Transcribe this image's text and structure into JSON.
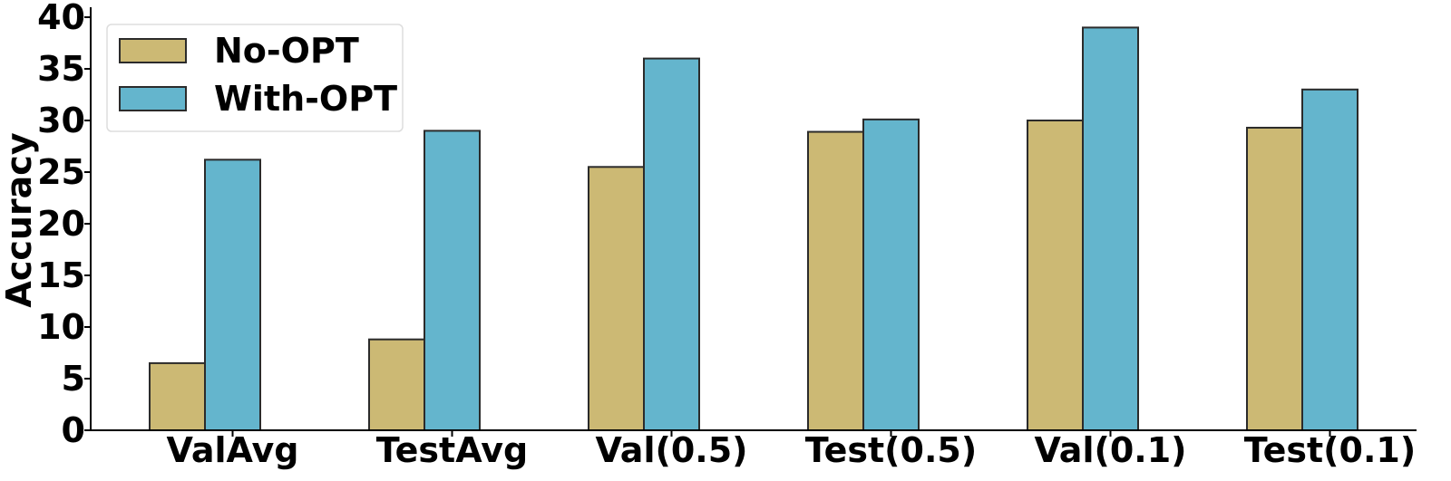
{
  "chart_data": {
    "type": "bar",
    "title": "",
    "xlabel": "",
    "ylabel": "Accuracy",
    "ylim": [
      0,
      40
    ],
    "yticks": [
      0,
      5,
      10,
      15,
      20,
      25,
      30,
      35,
      40
    ],
    "categories": [
      "ValAvg",
      "TestAvg",
      "Val(0.5)",
      "Test(0.5)",
      "Val(0.1)",
      "Test(0.1)"
    ],
    "series": [
      {
        "name": "No-OPT",
        "color": "#CCB974",
        "values": [
          6.5,
          8.8,
          25.5,
          28.9,
          30.0,
          29.3
        ]
      },
      {
        "name": "With-OPT",
        "color": "#64B5CD",
        "values": [
          26.2,
          29.0,
          36.0,
          30.1,
          39.0,
          33.0
        ]
      }
    ],
    "legend": {
      "position": "top-left"
    },
    "grid": false
  }
}
